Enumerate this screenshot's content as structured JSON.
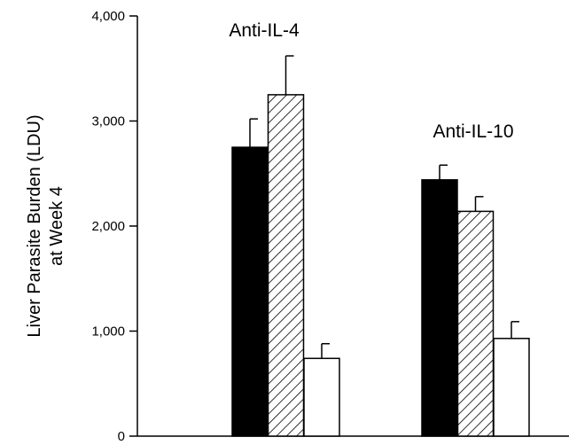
{
  "chart_data": {
    "type": "bar",
    "title": "",
    "xlabel": "",
    "ylabel": "Liver Parasite Burden (LDU)",
    "ylabel_line2": "at Week 4",
    "ylim": [
      0,
      4000
    ],
    "yticks": [
      0,
      1000,
      2000,
      3000,
      4000
    ],
    "ytick_labels": [
      "0",
      "1,000",
      "2,000",
      "3,000",
      "4,000"
    ],
    "grid": false,
    "legend": "none",
    "groups": [
      {
        "label": "Anti-IL-4",
        "bars": [
          {
            "fill": "solid",
            "value": 2750,
            "error": 270
          },
          {
            "fill": "hatched",
            "value": 3250,
            "error": 370
          },
          {
            "fill": "open",
            "value": 740,
            "error": 140
          }
        ]
      },
      {
        "label": "Anti-IL-10",
        "bars": [
          {
            "fill": "solid",
            "value": 2440,
            "error": 140
          },
          {
            "fill": "hatched",
            "value": 2140,
            "error": 140
          },
          {
            "fill": "open",
            "value": 930,
            "error": 160
          }
        ]
      }
    ],
    "colors": {
      "solid": "#000000",
      "hatched": "#ffffff",
      "open": "#ffffff",
      "stroke": "#000000"
    }
  }
}
